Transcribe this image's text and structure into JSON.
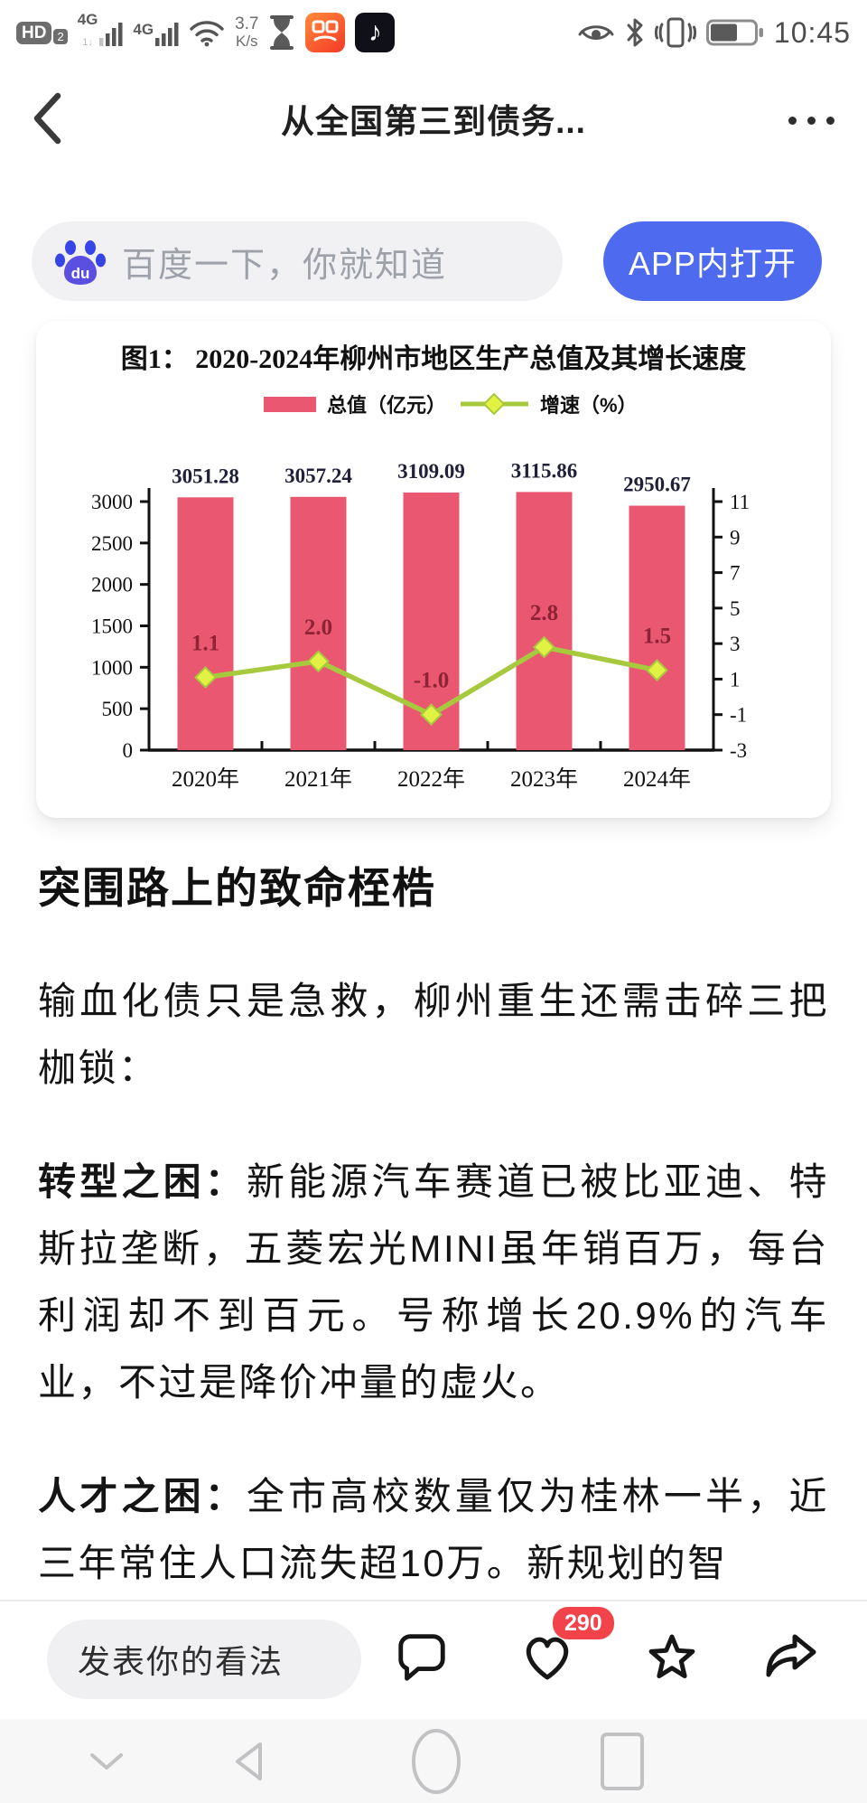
{
  "status_bar": {
    "hd": "HD",
    "hd_sub": "2",
    "sim1": "4G",
    "sim1_sub": "1↓",
    "sim2": "4G",
    "speed_value": "3.7",
    "speed_unit": "K/s",
    "douyin_glyph": "♪",
    "time": "10:45"
  },
  "header": {
    "title": "从全国第三到债务..."
  },
  "search": {
    "placeholder": "百度一下，你就知道",
    "brand_label": "du",
    "open_in_app_label": "APP内打开"
  },
  "chart_data": {
    "type": "bar+line combo",
    "title": "图1： 2020-2024年柳州市地区生产总值及其增长速度",
    "categories": [
      "2020年",
      "2021年",
      "2022年",
      "2023年",
      "2024年"
    ],
    "series": [
      {
        "name": "总值（亿元）",
        "type": "bar",
        "axis": "left",
        "values": [
          3051.28,
          3057.24,
          3109.09,
          3115.86,
          2950.67
        ],
        "color": "#e95870"
      },
      {
        "name": "增速（%）",
        "type": "line",
        "axis": "right",
        "values": [
          1.1,
          2.0,
          -1.0,
          2.8,
          1.5
        ],
        "color": "#a6c93e",
        "marker_color": "#e2f243"
      }
    ],
    "left_axis": {
      "min": 0,
      "max": 3000,
      "step": 500,
      "ticks": [
        0,
        500,
        1000,
        1500,
        2000,
        2500,
        3000
      ]
    },
    "right_axis": {
      "min": -3,
      "max": 11,
      "step": 2,
      "ticks": [
        -3,
        -1,
        1,
        3,
        5,
        7,
        9,
        11
      ]
    },
    "legend_position": "top",
    "grid": false,
    "axis_color": "#111111",
    "bar_label_color": "#20203a",
    "line_label_color": "#8e2237"
  },
  "article": {
    "heading": "突围路上的致命桎梏",
    "paragraphs": [
      {
        "lead": "",
        "text": "输血化债只是急救，柳州重生还需击碎三把枷锁："
      },
      {
        "lead": "转型之困：",
        "text": "新能源汽车赛道已被比亚迪、特斯拉垄断，五菱宏光MINI虽年销百万，每台利润却不到百元。号称增长20.9%的汽车业，不过是降价冲量的虚火。"
      },
      {
        "lead": "人才之困：",
        "text": "全市高校数量仅为桂林一半，近三年常住人口流失超10万。新规划的智"
      }
    ]
  },
  "bottom_bar": {
    "comment_placeholder": "发表你的看法",
    "like_count": "290"
  },
  "colors": {
    "accent_blue": "#4e6bef",
    "bar_pink": "#e95870",
    "line_green": "#a6c93e",
    "badge_red": "#f2434b"
  }
}
